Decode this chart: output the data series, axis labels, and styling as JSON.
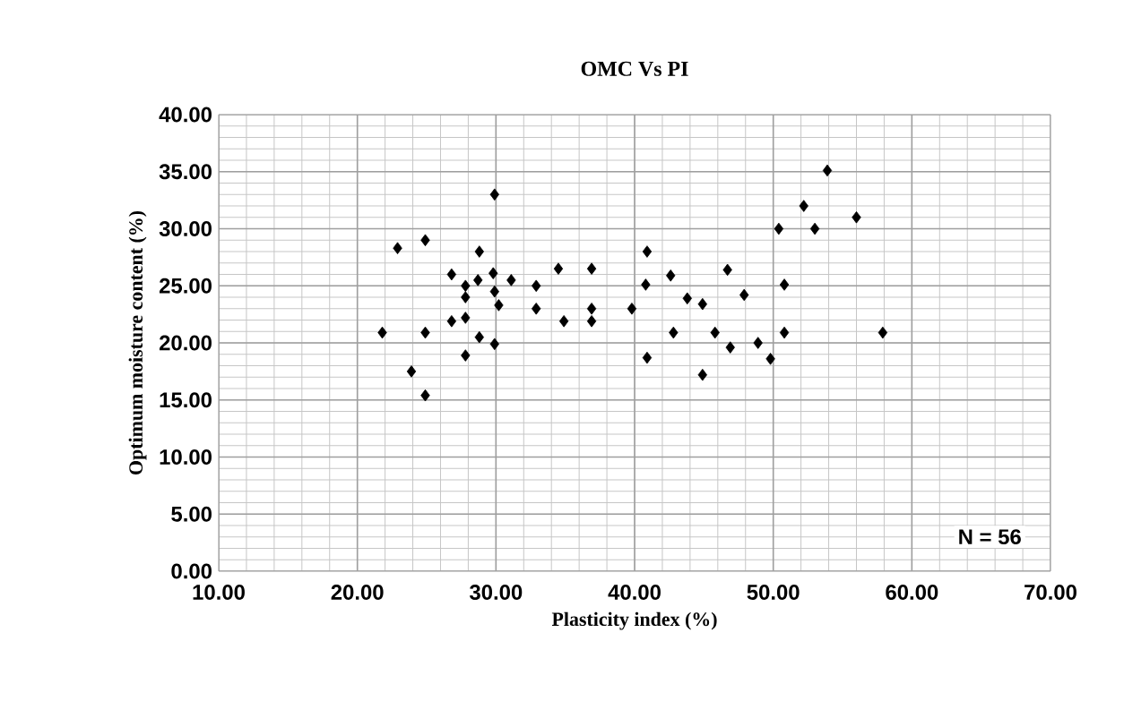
{
  "chart_data": {
    "type": "scatter",
    "title": "OMC Vs PI",
    "xlabel": "Plasticity index (%)",
    "ylabel": "Optimum moisture content (%)",
    "x": [
      29.9,
      22.9,
      24.9,
      28.8,
      26.8,
      29.8,
      28.7,
      27.8,
      31.1,
      29.9,
      27.8,
      30.2,
      32.9,
      34.5,
      36.9,
      32.9,
      36.9,
      36.9,
      34.9,
      26.8,
      27.8,
      21.8,
      24.9,
      28.8,
      29.9,
      27.8,
      23.9,
      24.9,
      53.9,
      52.2,
      50.4,
      53.0,
      56.0,
      40.9,
      40.8,
      42.6,
      43.8,
      44.9,
      39.8,
      46.7,
      47.9,
      50.8,
      42.8,
      45.8,
      46.9,
      48.9,
      49.8,
      50.8,
      40.9,
      44.9,
      57.9
    ],
    "values": [
      33.0,
      28.3,
      29.0,
      28.0,
      26.0,
      26.1,
      25.5,
      25.0,
      25.5,
      24.5,
      24.0,
      23.3,
      25.0,
      26.5,
      26.5,
      23.0,
      23.0,
      21.9,
      21.9,
      21.9,
      22.2,
      20.9,
      20.9,
      20.5,
      19.9,
      18.9,
      17.5,
      15.4,
      35.1,
      32.0,
      30.0,
      30.0,
      31.0,
      28.0,
      25.1,
      25.9,
      23.9,
      23.4,
      23.0,
      26.4,
      24.2,
      25.1,
      20.9,
      20.9,
      19.6,
      20.0,
      18.6,
      20.9,
      18.7,
      17.2,
      20.9
    ],
    "color": "#000000",
    "marker": "diamond",
    "grid": true,
    "xlim": [
      10,
      70
    ],
    "ylim": [
      0,
      40
    ],
    "xticks": [
      {
        "value": 10,
        "label": "10.00"
      },
      {
        "value": 12,
        "label": null
      },
      {
        "value": 14,
        "label": null
      },
      {
        "value": 16,
        "label": null
      },
      {
        "value": 18,
        "label": null
      },
      {
        "value": 20,
        "label": "20.00"
      },
      {
        "value": 22,
        "label": null
      },
      {
        "value": 24,
        "label": null
      },
      {
        "value": 26,
        "label": null
      },
      {
        "value": 28,
        "label": null
      },
      {
        "value": 30,
        "label": "30.00"
      },
      {
        "value": 32,
        "label": null
      },
      {
        "value": 34,
        "label": null
      },
      {
        "value": 36,
        "label": null
      },
      {
        "value": 38,
        "label": null
      },
      {
        "value": 40,
        "label": "40.00"
      },
      {
        "value": 42,
        "label": null
      },
      {
        "value": 44,
        "label": null
      },
      {
        "value": 46,
        "label": null
      },
      {
        "value": 48,
        "label": null
      },
      {
        "value": 50,
        "label": "50.00"
      },
      {
        "value": 52,
        "label": null
      },
      {
        "value": 54,
        "label": null
      },
      {
        "value": 56,
        "label": null
      },
      {
        "value": 58,
        "label": null
      },
      {
        "value": 60,
        "label": "60.00"
      },
      {
        "value": 62,
        "label": null
      },
      {
        "value": 64,
        "label": null
      },
      {
        "value": 66,
        "label": null
      },
      {
        "value": 68,
        "label": null
      },
      {
        "value": 70,
        "label": "70.00"
      }
    ],
    "yticks": [
      {
        "value": 0,
        "label": "0.00"
      },
      {
        "value": 1,
        "label": null
      },
      {
        "value": 2,
        "label": null
      },
      {
        "value": 3,
        "label": null
      },
      {
        "value": 4,
        "label": null
      },
      {
        "value": 5,
        "label": "5.00"
      },
      {
        "value": 6,
        "label": null
      },
      {
        "value": 7,
        "label": null
      },
      {
        "value": 8,
        "label": null
      },
      {
        "value": 9,
        "label": null
      },
      {
        "value": 10,
        "label": "10.00"
      },
      {
        "value": 11,
        "label": null
      },
      {
        "value": 12,
        "label": null
      },
      {
        "value": 13,
        "label": null
      },
      {
        "value": 14,
        "label": null
      },
      {
        "value": 15,
        "label": "15.00"
      },
      {
        "value": 16,
        "label": null
      },
      {
        "value": 17,
        "label": null
      },
      {
        "value": 18,
        "label": null
      },
      {
        "value": 19,
        "label": null
      },
      {
        "value": 20,
        "label": "20.00"
      },
      {
        "value": 21,
        "label": null
      },
      {
        "value": 22,
        "label": null
      },
      {
        "value": 23,
        "label": null
      },
      {
        "value": 24,
        "label": null
      },
      {
        "value": 25,
        "label": "25.00"
      },
      {
        "value": 26,
        "label": null
      },
      {
        "value": 27,
        "label": null
      },
      {
        "value": 28,
        "label": null
      },
      {
        "value": 29,
        "label": null
      },
      {
        "value": 30,
        "label": "30.00"
      },
      {
        "value": 31,
        "label": null
      },
      {
        "value": 32,
        "label": null
      },
      {
        "value": 33,
        "label": null
      },
      {
        "value": 34,
        "label": null
      },
      {
        "value": 35,
        "label": "35.00"
      },
      {
        "value": 36,
        "label": null
      },
      {
        "value": 37,
        "label": null
      },
      {
        "value": 38,
        "label": null
      },
      {
        "value": 39,
        "label": null
      },
      {
        "value": 40,
        "label": "40.00"
      }
    ],
    "annotations": [
      "N = 56"
    ]
  }
}
